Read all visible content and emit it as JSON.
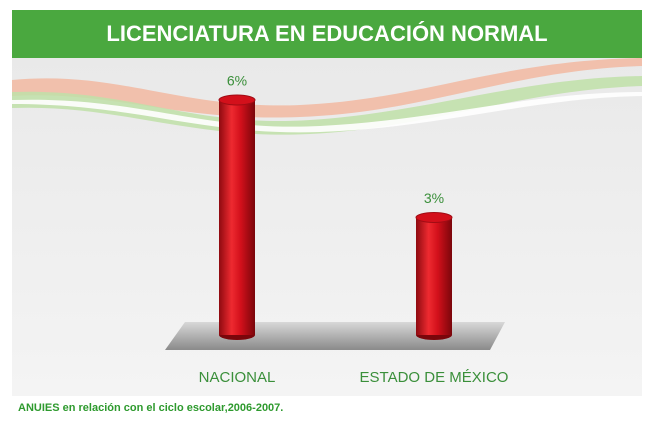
{
  "chart_data": {
    "type": "bar",
    "title": "LICENCIATURA EN EDUCACIÓN NORMAL",
    "categories": [
      "NACIONAL",
      "ESTADO DE MÉXICO"
    ],
    "values": [
      6,
      3
    ],
    "value_labels": [
      "6%",
      "3%"
    ],
    "color": "#d3101b",
    "note": "ANUIES en relación  con el ciclo escolar,2006-2007."
  }
}
